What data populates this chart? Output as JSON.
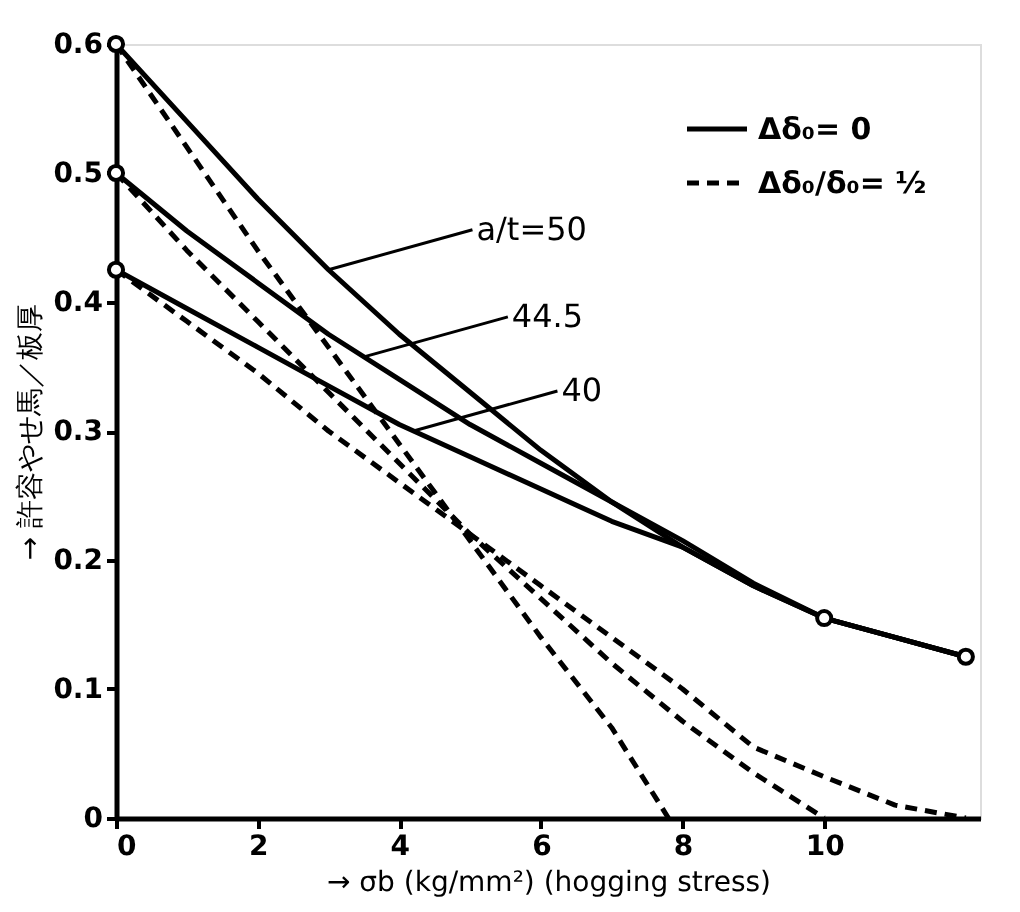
{
  "chart_data": {
    "type": "line",
    "xlabel": "→ σb (kg/mm²)   (hogging stress)",
    "ylabel": "→ 許容やせ馬／板厚",
    "xlim": [
      0,
      12.2
    ],
    "ylim": [
      0,
      0.6
    ],
    "xticks": [
      0,
      2,
      4,
      6,
      8,
      10
    ],
    "yticks": [
      0,
      0.1,
      0.2,
      0.3,
      0.4,
      0.5,
      0.6
    ],
    "grid": false,
    "legend": "top right",
    "marker": "none",
    "series": [
      {
        "name": "Δδ₀= 0",
        "color": "#000000",
        "line_style": "solid",
        "x": [
          0,
          1,
          2,
          3,
          4,
          5,
          6,
          7,
          8,
          9,
          10,
          11,
          12
        ],
        "values": [
          0.6,
          0.54,
          0.48,
          0.425,
          0.375,
          0.33,
          0.285,
          0.245,
          0.21,
          0.18,
          0.155,
          0.14,
          0.125
        ]
      },
      {
        "color": "#000000",
        "line_style": "solid",
        "x": [
          0,
          1,
          2,
          3,
          4,
          5,
          6,
          7,
          8,
          9,
          10,
          11,
          12
        ],
        "values": [
          0.5,
          0.455,
          0.415,
          0.375,
          0.34,
          0.305,
          0.275,
          0.245,
          0.215,
          0.182,
          0.155,
          0.14,
          0.125
        ]
      },
      {
        "color": "#000000",
        "line_style": "solid",
        "x": [
          0,
          1,
          2,
          3,
          4,
          5,
          6,
          7,
          8,
          9,
          10,
          11,
          12
        ],
        "values": [
          0.425,
          0.395,
          0.365,
          0.335,
          0.305,
          0.28,
          0.255,
          0.23,
          0.21,
          0.18,
          0.155,
          0.14,
          0.125
        ]
      },
      {
        "name": "Δδ₀/δ₀= ½",
        "color": "#000000",
        "line_style": "dashed",
        "x": [
          0,
          1,
          2,
          3,
          4,
          5,
          6,
          7,
          7.8
        ],
        "values": [
          0.6,
          0.52,
          0.44,
          0.365,
          0.29,
          0.215,
          0.14,
          0.07,
          0
        ]
      },
      {
        "color": "#000000",
        "line_style": "dashed",
        "x": [
          0,
          1,
          2,
          3,
          4,
          5,
          6,
          7,
          8,
          9,
          10
        ],
        "values": [
          0.5,
          0.44,
          0.385,
          0.33,
          0.275,
          0.22,
          0.17,
          0.12,
          0.075,
          0.035,
          0
        ]
      },
      {
        "color": "#000000",
        "line_style": "dashed",
        "x": [
          0,
          1,
          2,
          3,
          4,
          5,
          6,
          7,
          8,
          9,
          10,
          11,
          12
        ],
        "values": [
          0.425,
          0.385,
          0.345,
          0.3,
          0.26,
          0.22,
          0.18,
          0.14,
          0.1,
          0.055,
          0.032,
          0.01,
          0
        ]
      },
      {
        "type": "scatter",
        "marker": "circle",
        "color": "#000000",
        "x": [
          0,
          0,
          0,
          10,
          12
        ],
        "values": [
          0.6,
          0.5,
          0.425,
          0.155,
          0.125
        ]
      }
    ],
    "annotations": [
      {
        "text": "a/t=50",
        "x": 3,
        "y": 0.425
      },
      {
        "text": "44.5",
        "x": 3.5,
        "y": 0.3575
      },
      {
        "text": "40",
        "x": 4.2,
        "y": 0.3
      }
    ]
  }
}
